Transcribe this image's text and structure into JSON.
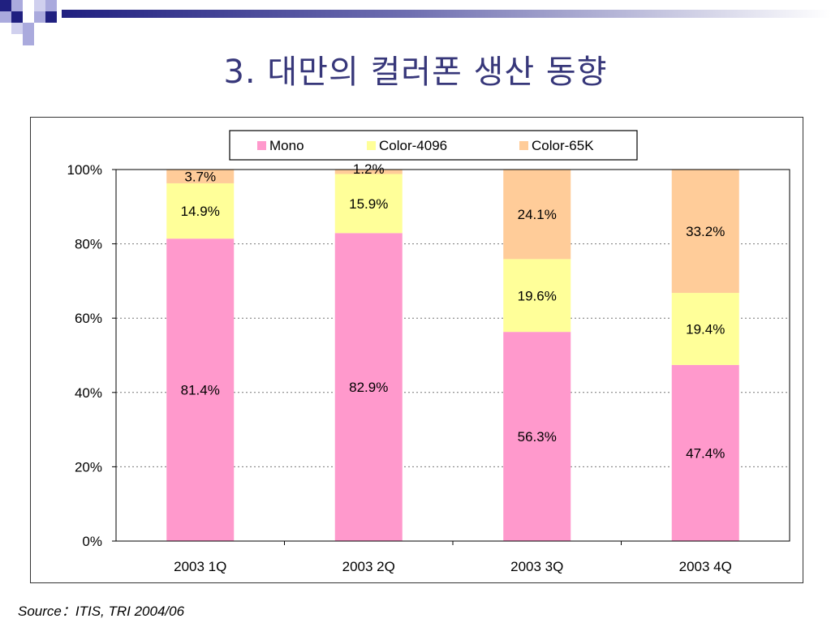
{
  "slide": {
    "title": "3. 대만의 컬러폰 생산 동향",
    "source": "Source：ITIS, TRI  2004/06"
  },
  "colors": {
    "title": "#37377a",
    "deco_dark": "#202080",
    "deco_light": "#aaaadd",
    "Mono": "#ff99cc",
    "Color-4096": "#ffff99",
    "Color-65K": "#ffcc99"
  },
  "chart_data": {
    "type": "bar",
    "stacked": true,
    "percent": true,
    "categories": [
      "2003 1Q",
      "2003 2Q",
      "2003 3Q",
      "2003 4Q"
    ],
    "series": [
      {
        "name": "Mono",
        "values": [
          81.4,
          82.9,
          56.3,
          47.4
        ],
        "labels": [
          "81.4%",
          "82.9%",
          "56.3%",
          "47.4%"
        ]
      },
      {
        "name": "Color-4096",
        "values": [
          14.9,
          15.9,
          19.6,
          19.4
        ],
        "labels": [
          "14.9%",
          "15.9%",
          "19.6%",
          "19.4%"
        ]
      },
      {
        "name": "Color-65K",
        "values": [
          3.7,
          1.2,
          24.1,
          33.2
        ],
        "labels": [
          "3.7%",
          "1.2%",
          "24.1%",
          "33.2%"
        ]
      }
    ],
    "y_ticks": [
      "0%",
      "20%",
      "40%",
      "60%",
      "80%",
      "100%"
    ],
    "ylim": [
      0,
      100
    ],
    "grid": "dotted horizontal",
    "legend": "top-center",
    "title": "",
    "xlabel": "",
    "ylabel": ""
  }
}
